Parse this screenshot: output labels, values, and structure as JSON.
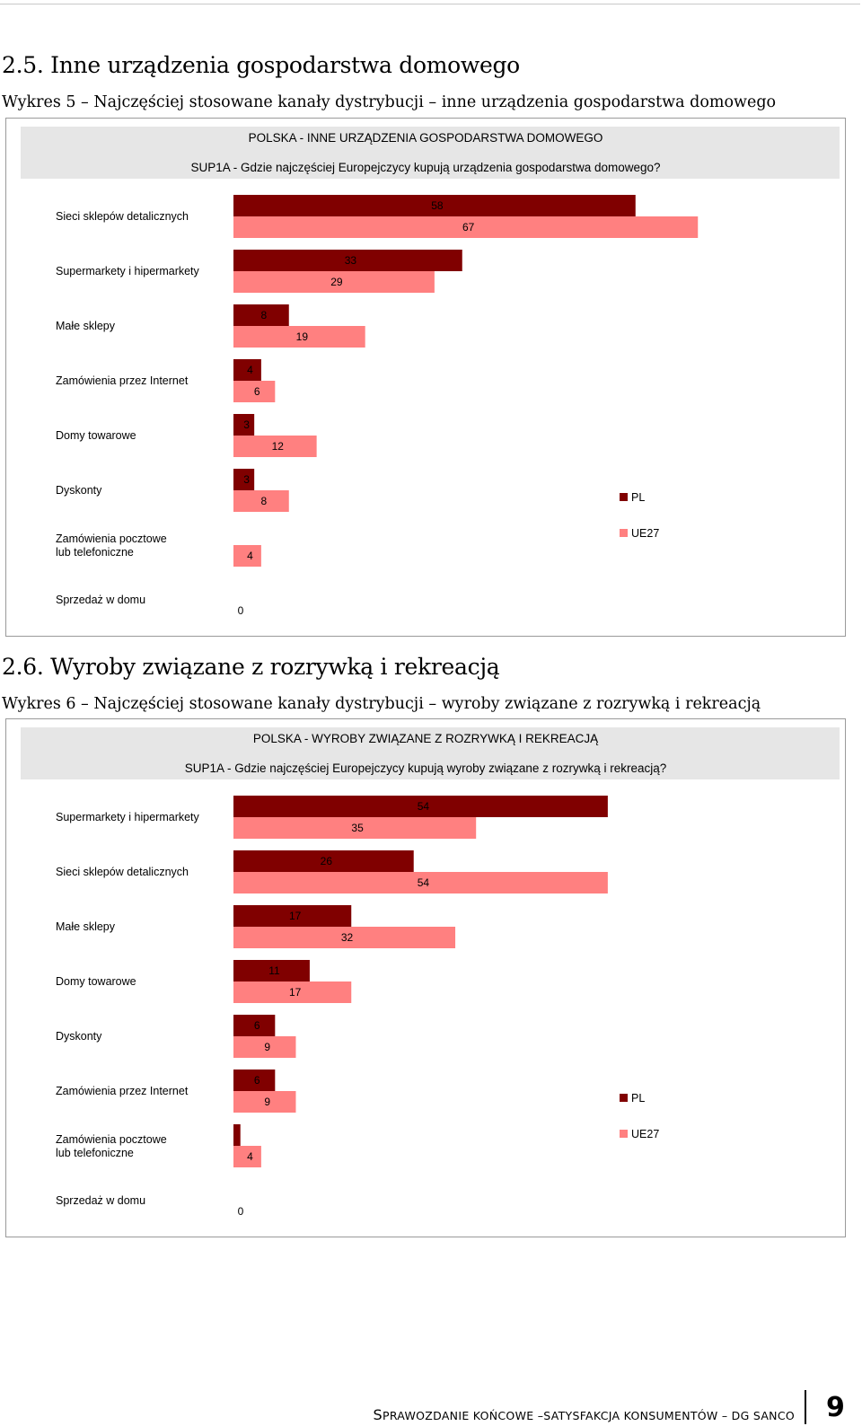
{
  "section1": {
    "heading": "2.5. Inne urządzenia gospodarstwa domowego",
    "caption": "Wykres 5 – Najczęściej stosowane kanały dystrybucji – inne urządzenia gospodarstwa domowego"
  },
  "section2": {
    "heading": "2.6. Wyroby związane z rozrywką i rekreacją",
    "caption": "Wykres 6 – Najczęściej stosowane kanały dystrybucji – wyroby związane z rozrywką i rekreacją"
  },
  "colors": {
    "PL": "#800000",
    "UE27": "#ff8080",
    "header_bg": "#e6e6e6"
  },
  "chart_data": [
    {
      "type": "bar",
      "orientation": "horizontal",
      "title": "POLSKA - INNE URZĄDZENIA GOSPODARSTWA DOMOWEGO",
      "subtitle": "SUP1A - Gdzie najczęściej Europejczycy kupują urządzenia gospodarstwa domowego?",
      "categories": [
        "Sieci sklepów detalicznych",
        "Supermarkety i hipermarkety",
        "Małe sklepy",
        "Zamówienia przez Internet",
        "Domy towarowe",
        "Dyskonty",
        "Zamówienia pocztowe lub telefoniczne",
        "Sprzedaż w domu"
      ],
      "series": [
        {
          "name": "PL",
          "values": [
            58,
            33,
            8,
            4,
            3,
            3,
            null,
            null
          ]
        },
        {
          "name": "UE27",
          "values": [
            67,
            29,
            19,
            6,
            12,
            8,
            4,
            0
          ]
        }
      ],
      "legend": [
        "PL",
        "UE27"
      ],
      "legend_position": "right",
      "xlim": [
        0,
        100
      ],
      "grid": false
    },
    {
      "type": "bar",
      "orientation": "horizontal",
      "title": "POLSKA - WYROBY ZWIĄZANE  Z ROZRYWKĄ I REKREACJĄ",
      "subtitle": "SUP1A - Gdzie najczęściej Europejczycy kupują wyroby związane z rozrywką i rekreacją?",
      "categories": [
        "Supermarkety i hipermarkety",
        "Sieci sklepów detalicznych",
        "Małe sklepy",
        "Domy towarowe",
        "Dyskonty",
        "Zamówienia przez Internet",
        "Zamówienia pocztowe lub telefoniczne",
        "Sprzedaż w domu"
      ],
      "series": [
        {
          "name": "PL",
          "values": [
            54,
            26,
            17,
            11,
            6,
            6,
            1,
            null
          ]
        },
        {
          "name": "UE27",
          "values": [
            35,
            54,
            32,
            17,
            9,
            9,
            4,
            0
          ]
        }
      ],
      "pl_labels": [
        "54",
        "26",
        "17",
        "11",
        "6",
        "6",
        "",
        ""
      ],
      "legend": [
        "PL",
        "UE27"
      ],
      "legend_position": "right",
      "xlim": [
        0,
        100
      ],
      "grid": false
    }
  ],
  "footer": {
    "text_s": "S",
    "text_rest": "PRAWOZDANIE KOŃCOWE –SATYSFAKCJA KONSUMENTÓW – DG SANCO",
    "page": "9"
  }
}
